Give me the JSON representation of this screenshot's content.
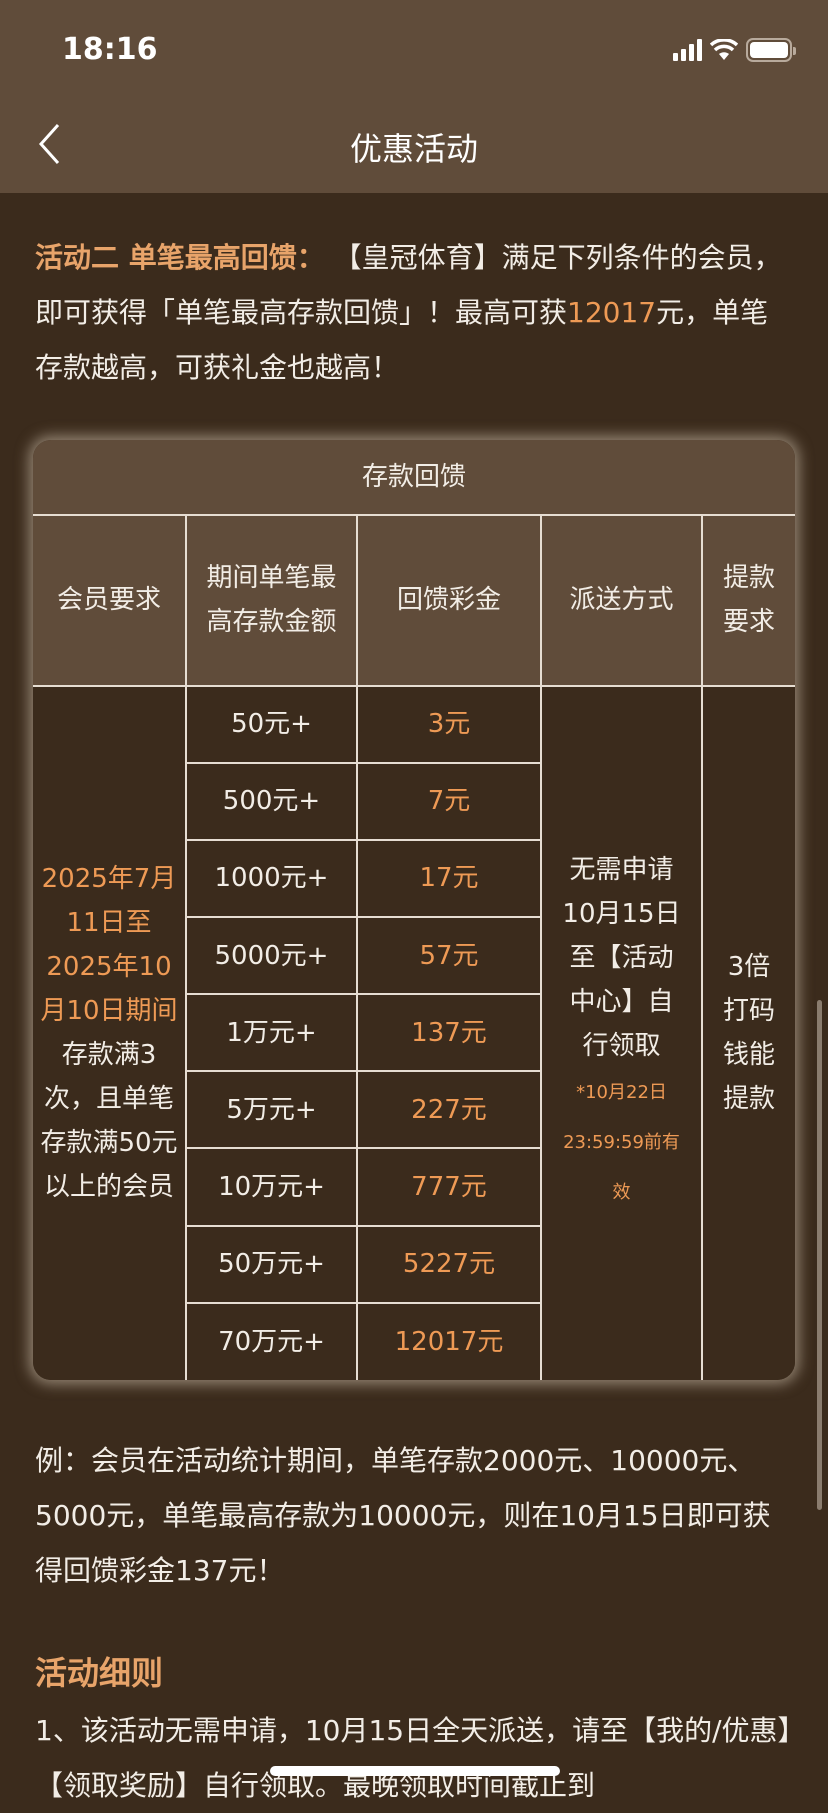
{
  "status": {
    "time": "18:16"
  },
  "nav": {
    "title": "优惠活动"
  },
  "intro": {
    "heading": "活动二 单笔最高回馈",
    "colon": "：",
    "text1": "【皇冠体育】满足下列条件的会员，即可获得「单笔最高存款回馈」！最高可获",
    "amount": "12017",
    "text2": "元，单笔存款越高，可获礼金也越高！"
  },
  "table": {
    "title": "存款回馈",
    "headers": [
      "会员要求",
      "期间单笔最高存款金额",
      "回馈彩金",
      "派送方式",
      "提款要求"
    ],
    "member_req_date": "2025年7月11日至2025年10月10日期间",
    "member_req_text": "存款满3次，且单笔存款满50元以上的会员",
    "rows": [
      {
        "deposit": "50元+",
        "bonus": "3元"
      },
      {
        "deposit": "500元+",
        "bonus": "7元"
      },
      {
        "deposit": "1000元+",
        "bonus": "17元"
      },
      {
        "deposit": "5000元+",
        "bonus": "57元"
      },
      {
        "deposit": "1万元+",
        "bonus": "137元"
      },
      {
        "deposit": "5万元+",
        "bonus": "227元"
      },
      {
        "deposit": "10万元+",
        "bonus": "777元"
      },
      {
        "deposit": "50万元+",
        "bonus": "5227元"
      },
      {
        "deposit": "70万元+",
        "bonus": "12017元"
      }
    ],
    "delivery": "无需申请10月15日至【活动中心】自行领取",
    "delivery_note": "*10月22日23:59:59前有效",
    "withdraw": "3倍打码钱能提款"
  },
  "example": "例：会员在活动统计期间，单笔存款2000元、10000元、5000元，单笔最高存款为10000元，则在10月15日即可获得回馈彩金137元！",
  "rules": {
    "heading": "活动细则",
    "item1": "1、该活动无需申请，10月15日全天派送，请至【我的/优惠】【领取奖励】自行领取。最晚领取时间截止到"
  },
  "colors": {
    "header_bg": "#604c3a",
    "body_bg": "#3b2b1c",
    "accent": "#ee9a55"
  }
}
